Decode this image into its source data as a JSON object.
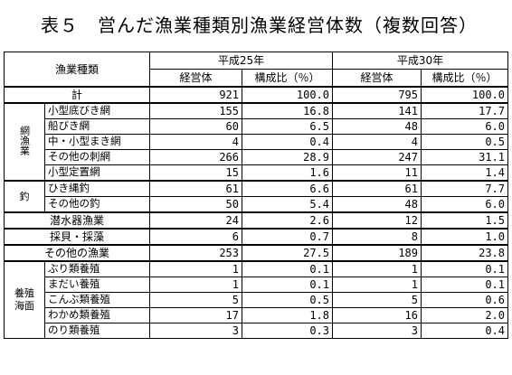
{
  "title": "表５　営んだ漁業種類別漁業経営体数（複数回答）",
  "headers": {
    "category": "漁業種類",
    "year_a": "平成25年",
    "year_b": "平成30年",
    "col_count": "経営体",
    "col_ratio": "構成比（％）"
  },
  "rows": [
    {
      "group": "",
      "label": "計",
      "a_count": "921",
      "a_ratio": "100.0",
      "b_count": "795",
      "b_ratio": "100.0"
    },
    {
      "group": "網漁業",
      "label": "小型底びき網",
      "a_count": "155",
      "a_ratio": "16.8",
      "b_count": "141",
      "b_ratio": "17.7"
    },
    {
      "group": "網漁業",
      "label": "船びき網",
      "a_count": "60",
      "a_ratio": "6.5",
      "b_count": "48",
      "b_ratio": "6.0"
    },
    {
      "group": "網漁業",
      "label": "中・小型まき網",
      "a_count": "4",
      "a_ratio": "0.4",
      "b_count": "4",
      "b_ratio": "0.5"
    },
    {
      "group": "網漁業",
      "label": "その他の刺網",
      "a_count": "266",
      "a_ratio": "28.9",
      "b_count": "247",
      "b_ratio": "31.1"
    },
    {
      "group": "網漁業",
      "label": "小型定置網",
      "a_count": "15",
      "a_ratio": "1.6",
      "b_count": "11",
      "b_ratio": "1.4"
    },
    {
      "group": "釣",
      "label": "ひき縄釣",
      "a_count": "61",
      "a_ratio": "6.6",
      "b_count": "61",
      "b_ratio": "7.7"
    },
    {
      "group": "釣",
      "label": "その他の釣",
      "a_count": "50",
      "a_ratio": "5.4",
      "b_count": "48",
      "b_ratio": "6.0"
    },
    {
      "group": "",
      "label": "潜水器漁業",
      "a_count": "24",
      "a_ratio": "2.6",
      "b_count": "12",
      "b_ratio": "1.5"
    },
    {
      "group": "",
      "label": "採貝・採藻",
      "a_count": "6",
      "a_ratio": "0.7",
      "b_count": "8",
      "b_ratio": "1.0"
    },
    {
      "group": "",
      "label": "その他の漁業",
      "a_count": "253",
      "a_ratio": "27.5",
      "b_count": "189",
      "b_ratio": "23.8"
    },
    {
      "group": "養殖海面",
      "label": "ぶり類養殖",
      "a_count": "1",
      "a_ratio": "0.1",
      "b_count": "1",
      "b_ratio": "0.1"
    },
    {
      "group": "養殖海面",
      "label": "まだい養殖",
      "a_count": "1",
      "a_ratio": "0.1",
      "b_count": "1",
      "b_ratio": "0.1"
    },
    {
      "group": "養殖海面",
      "label": "こんぶ類養殖",
      "a_count": "5",
      "a_ratio": "0.5",
      "b_count": "5",
      "b_ratio": "0.6"
    },
    {
      "group": "養殖海面",
      "label": "わかめ類養殖",
      "a_count": "17",
      "a_ratio": "1.8",
      "b_count": "16",
      "b_ratio": "2.0"
    },
    {
      "group": "養殖海面",
      "label": "のり類養殖",
      "a_count": "3",
      "a_ratio": "0.3",
      "b_count": "3",
      "b_ratio": "0.4"
    }
  ],
  "group_labels": {
    "ami": "網漁業",
    "tsuri": "釣",
    "yoshoku": "養殖海面"
  }
}
